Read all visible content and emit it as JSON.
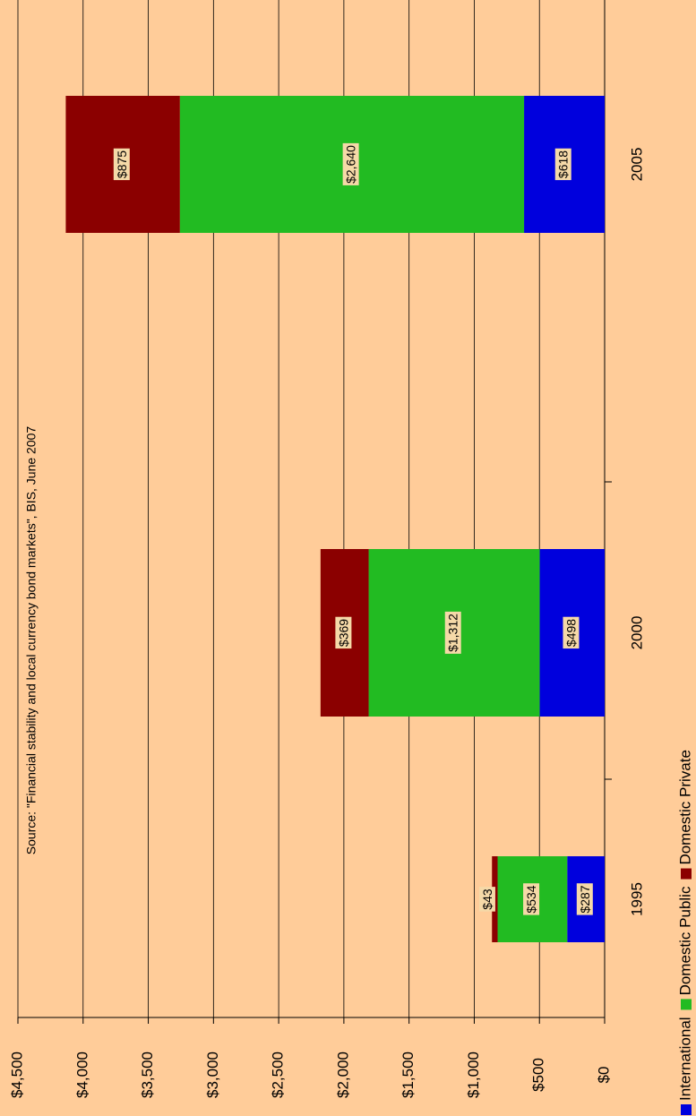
{
  "chart_data": {
    "type": "stacked-bar",
    "annotation": "Source: \"Financial stability and local currency bond markets\", BIS, June 2007",
    "categories": [
      "1995",
      "2000",
      "2005"
    ],
    "series": [
      {
        "name": "International",
        "color": "#0000dd",
        "values": [
          287,
          498,
          618
        ],
        "value_labels": [
          "$287",
          "$498",
          "$618"
        ]
      },
      {
        "name": "Domestic Public",
        "color": "#22bb22",
        "values": [
          534,
          1312,
          2640
        ],
        "value_labels": [
          "$534",
          "$1,312",
          "$2,640"
        ]
      },
      {
        "name": "Domestic Private",
        "color": "#8b0000",
        "values": [
          43,
          369,
          875
        ],
        "value_labels": [
          "$43",
          "$369",
          "$875"
        ]
      }
    ],
    "ylim": [
      0,
      4500
    ],
    "yticks": [
      {
        "value": 0,
        "label": "$0"
      },
      {
        "value": 500,
        "label": "$500"
      },
      {
        "value": 1000,
        "label": "$1,000"
      },
      {
        "value": 1500,
        "label": "$1,500"
      },
      {
        "value": 2000,
        "label": "$2,000"
      },
      {
        "value": 2500,
        "label": "$2,500"
      },
      {
        "value": 3000,
        "label": "$3,000"
      },
      {
        "value": 3500,
        "label": "$3,500"
      },
      {
        "value": 4000,
        "label": "$4,000"
      },
      {
        "value": 4500,
        "label": "$4,500"
      }
    ],
    "grid": true,
    "legend": "bottom"
  }
}
